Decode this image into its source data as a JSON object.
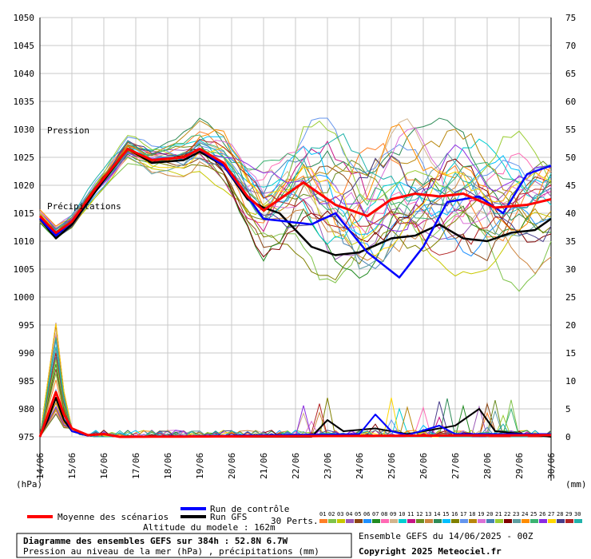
{
  "chart_data": {
    "type": "line",
    "subtitle": "Pression au niveau de la mer (hPa) , précipitations (mm)",
    "title": "Diagramme des ensembles GEFS sur 384h : 52.8N 6.7W",
    "altitude": "Altitude du modele : 162m",
    "run_info": "Ensemble GEFS du 14/06/2025 - 00Z",
    "copyright": "Copyright 2025 Meteociel.fr",
    "left_unit": "(hPa)",
    "right_unit": "(mm)",
    "pressure_label": "Pression",
    "precip_label": "Précipitations",
    "pressure_axis": {
      "min": 975,
      "max": 1050,
      "step": 5
    },
    "precip_axis": {
      "min": 0,
      "max": 75,
      "step": 5
    },
    "x_ticks": [
      "14/06",
      "15/06",
      "16/06",
      "17/06",
      "18/06",
      "19/06",
      "20/06",
      "21/06",
      "22/06",
      "23/06",
      "24/06",
      "25/06",
      "26/06",
      "27/06",
      "28/06",
      "29/06",
      "30/06"
    ],
    "x_range_hours": [
      0,
      384
    ],
    "time_step_hours": 6,
    "legend": {
      "mean": "Moyenne des scénarios",
      "control": "Run de contrôle",
      "gfs": "Run GFS",
      "perts": "30 Perts.",
      "pert_colors": [
        "#ff7f27",
        "#7fc34a",
        "#c8c800",
        "#9b59b6",
        "#8b4513",
        "#1e90ff",
        "#228b22",
        "#ff69b4",
        "#d2b48c",
        "#00ced1",
        "#c71585",
        "#6b8e23",
        "#cd853f",
        "#2e8b57",
        "#00bfff",
        "#808000",
        "#6495ed",
        "#b8860b",
        "#da70d6",
        "#4682b4",
        "#9acd32",
        "#800000",
        "#5f9ea0",
        "#ff8c00",
        "#3cb371",
        "#8a2be2",
        "#ffd700",
        "#483d8b",
        "#b22222",
        "#20b2aa"
      ]
    },
    "pressure_pivots": {
      "mean": [
        [
          0,
          1014.5
        ],
        [
          12,
          1011.5
        ],
        [
          24,
          1013.5
        ],
        [
          42,
          1019.5
        ],
        [
          66,
          1026.5
        ],
        [
          84,
          1024.5
        ],
        [
          108,
          1025
        ],
        [
          120,
          1026.5
        ],
        [
          138,
          1024
        ],
        [
          156,
          1018
        ],
        [
          168,
          1015.5
        ],
        [
          198,
          1020.5
        ],
        [
          222,
          1016.5
        ],
        [
          246,
          1014.5
        ],
        [
          264,
          1017.5
        ],
        [
          282,
          1018.5
        ],
        [
          300,
          1018
        ],
        [
          318,
          1018.5
        ],
        [
          342,
          1016
        ],
        [
          366,
          1016.5
        ],
        [
          384,
          1017.5
        ]
      ],
      "control": [
        [
          0,
          1014
        ],
        [
          12,
          1011
        ],
        [
          24,
          1013.5
        ],
        [
          42,
          1019.5
        ],
        [
          66,
          1026.5
        ],
        [
          84,
          1024.5
        ],
        [
          108,
          1025
        ],
        [
          120,
          1026.5
        ],
        [
          138,
          1023.5
        ],
        [
          156,
          1018
        ],
        [
          168,
          1014
        ],
        [
          186,
          1013.5
        ],
        [
          204,
          1013
        ],
        [
          222,
          1015
        ],
        [
          246,
          1008
        ],
        [
          270,
          1003.5
        ],
        [
          288,
          1009
        ],
        [
          306,
          1017
        ],
        [
          330,
          1018
        ],
        [
          348,
          1015
        ],
        [
          366,
          1022
        ],
        [
          384,
          1023.5
        ]
      ],
      "gfs": [
        [
          0,
          1014
        ],
        [
          12,
          1010.5
        ],
        [
          24,
          1013
        ],
        [
          42,
          1019
        ],
        [
          66,
          1026.5
        ],
        [
          84,
          1024
        ],
        [
          108,
          1024.5
        ],
        [
          120,
          1026
        ],
        [
          138,
          1023.5
        ],
        [
          156,
          1017.5
        ],
        [
          168,
          1016
        ],
        [
          180,
          1015
        ],
        [
          204,
          1009
        ],
        [
          222,
          1007.5
        ],
        [
          240,
          1008
        ],
        [
          264,
          1010.5
        ],
        [
          282,
          1011
        ],
        [
          300,
          1013
        ],
        [
          318,
          1010.5
        ],
        [
          336,
          1010
        ],
        [
          354,
          1011.5
        ],
        [
          372,
          1012
        ],
        [
          384,
          1014
        ]
      ]
    },
    "pressure_spread": [
      [
        0,
        1
      ],
      [
        36,
        1.5
      ],
      [
        96,
        2.5
      ],
      [
        144,
        5
      ],
      [
        168,
        8
      ],
      [
        192,
        9
      ],
      [
        216,
        11
      ],
      [
        264,
        12
      ],
      [
        312,
        11
      ],
      [
        360,
        10
      ],
      [
        384,
        9
      ]
    ],
    "precip_pivots": {
      "mean": [
        [
          0,
          0
        ],
        [
          6,
          4
        ],
        [
          12,
          8
        ],
        [
          18,
          4
        ],
        [
          24,
          1.5
        ],
        [
          36,
          0.3
        ],
        [
          48,
          0.5
        ],
        [
          60,
          0
        ],
        [
          384,
          0.3
        ]
      ],
      "control": [
        [
          0,
          0
        ],
        [
          6,
          4
        ],
        [
          12,
          8
        ],
        [
          18,
          4
        ],
        [
          24,
          1
        ],
        [
          36,
          0.2
        ],
        [
          48,
          0.5
        ],
        [
          60,
          0
        ],
        [
          240,
          0.5
        ],
        [
          252,
          4
        ],
        [
          264,
          1
        ],
        [
          276,
          0.3
        ],
        [
          300,
          2
        ],
        [
          312,
          0.5
        ],
        [
          384,
          0.5
        ]
      ],
      "gfs": [
        [
          0,
          0
        ],
        [
          6,
          3
        ],
        [
          12,
          7
        ],
        [
          18,
          3
        ],
        [
          24,
          1
        ],
        [
          36,
          0.2
        ],
        [
          48,
          0.5
        ],
        [
          60,
          0
        ],
        [
          204,
          0
        ],
        [
          216,
          3
        ],
        [
          228,
          1
        ],
        [
          252,
          1.5
        ],
        [
          276,
          0.5
        ],
        [
          312,
          2
        ],
        [
          330,
          5
        ],
        [
          342,
          1
        ],
        [
          384,
          0
        ]
      ]
    },
    "precip_peaks_hours": [
      204,
      258,
      282,
      306,
      342
    ]
  }
}
